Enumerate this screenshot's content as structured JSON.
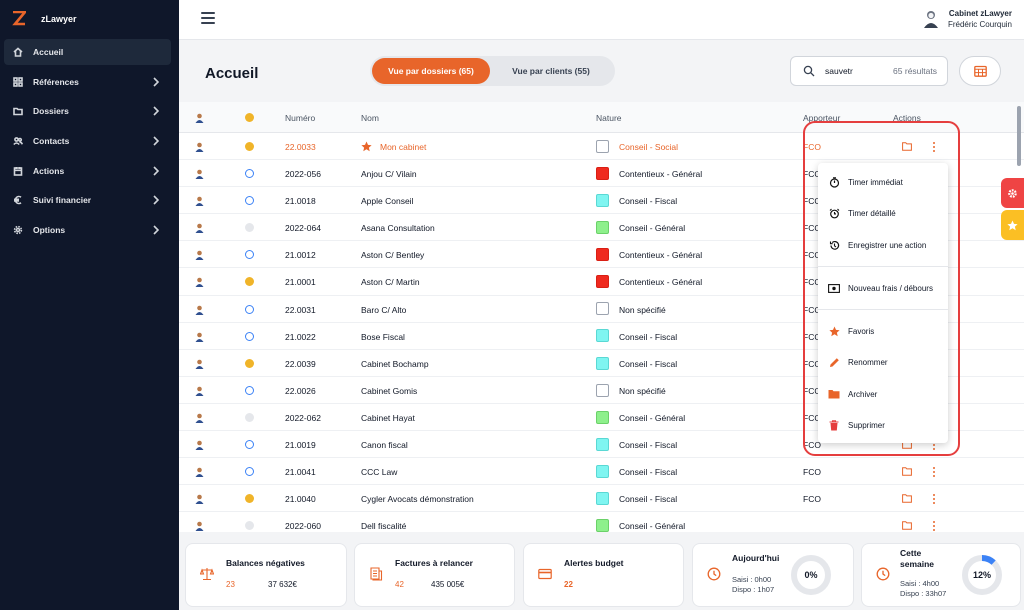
{
  "app": {
    "name": "zLawyer"
  },
  "sidebar": {
    "items": [
      {
        "label": "Accueil",
        "icon": "home-icon"
      },
      {
        "label": "Références",
        "icon": "grid-icon"
      },
      {
        "label": "Dossiers",
        "icon": "folder-icon"
      },
      {
        "label": "Contacts",
        "icon": "users-icon"
      },
      {
        "label": "Actions",
        "icon": "calendar-icon"
      },
      {
        "label": "Suivi financier",
        "icon": "euro-icon"
      },
      {
        "label": "Options",
        "icon": "gear-icon"
      }
    ]
  },
  "header": {
    "user_line1": "Cabinet zLawyer",
    "user_line2": "Frédéric Courquin"
  },
  "page": {
    "title": "Accueil"
  },
  "toggle": {
    "option1": "Vue par dossiers (65)",
    "option2": "Vue par clients (55)"
  },
  "search": {
    "value": "sauvetr",
    "count": "65 résultats"
  },
  "table": {
    "headers": {
      "numero": "Numéro",
      "nom": "Nom",
      "nature": "Nature",
      "apporteur": "Apporteur",
      "actions": "Actions"
    },
    "rows": [
      {
        "status": "gold",
        "numero": "22.0033",
        "nom": "Mon cabinet",
        "nature_color": "white",
        "nature": "Conseil - Social",
        "apporteur": "FCO",
        "favorite": true
      },
      {
        "status": "clock",
        "numero": "2022-056",
        "nom": "Anjou C/ Vilain",
        "nature_color": "red",
        "nature": "Contentieux - Général",
        "apporteur": "FCO"
      },
      {
        "status": "clock",
        "numero": "21.0018",
        "nom": "Apple Conseil",
        "nature_color": "cyan",
        "nature": "Conseil - Fiscal",
        "apporteur": "FCO"
      },
      {
        "status": "bulb",
        "numero": "2022-064",
        "nom": "Asana Consultation",
        "nature_color": "green",
        "nature": "Conseil - Général",
        "apporteur": "FCO"
      },
      {
        "status": "clock",
        "numero": "21.0012",
        "nom": "Aston C/ Bentley",
        "nature_color": "red",
        "nature": "Contentieux - Général",
        "apporteur": "FCO"
      },
      {
        "status": "gold",
        "numero": "21.0001",
        "nom": "Aston C/ Martin",
        "nature_color": "red",
        "nature": "Contentieux - Général",
        "apporteur": "FCO"
      },
      {
        "status": "clock",
        "numero": "22.0031",
        "nom": "Baro C/ Alto",
        "nature_color": "white",
        "nature": "Non spécifié",
        "apporteur": "FCO"
      },
      {
        "status": "clock",
        "numero": "21.0022",
        "nom": "Bose Fiscal",
        "nature_color": "cyan",
        "nature": "Conseil - Fiscal",
        "apporteur": "FCO"
      },
      {
        "status": "gold",
        "numero": "22.0039",
        "nom": "Cabinet Bochamp",
        "nature_color": "cyan",
        "nature": "Conseil - Fiscal",
        "apporteur": "FCO"
      },
      {
        "status": "clock",
        "numero": "22.0026",
        "nom": "Cabinet Gomis",
        "nature_color": "white",
        "nature": "Non spécifié",
        "apporteur": "FCO"
      },
      {
        "status": "bulb",
        "numero": "2022-062",
        "nom": "Cabinet Hayat",
        "nature_color": "green",
        "nature": "Conseil - Général",
        "apporteur": "FCO"
      },
      {
        "status": "clock",
        "numero": "21.0019",
        "nom": "Canon fiscal",
        "nature_color": "cyan",
        "nature": "Conseil - Fiscal",
        "apporteur": "FCO"
      },
      {
        "status": "clock",
        "numero": "21.0041",
        "nom": "CCC Law",
        "nature_color": "cyan",
        "nature": "Conseil - Fiscal",
        "apporteur": "FCO"
      },
      {
        "status": "gold",
        "numero": "21.0040",
        "nom": "Cygler Avocats démonstration",
        "nature_color": "cyan",
        "nature": "Conseil - Fiscal",
        "apporteur": "FCO"
      },
      {
        "status": "bulb",
        "numero": "2022-060",
        "nom": "Dell fiscalité",
        "nature_color": "green",
        "nature": "Conseil - Général",
        "apporteur": ""
      }
    ]
  },
  "menu": {
    "items": [
      {
        "label": "Timer immédiat",
        "icon": "stopwatch-icon"
      },
      {
        "label": "Timer détaillé",
        "icon": "alarm-icon"
      },
      {
        "label": "Enregistrer une action",
        "icon": "history-icon"
      },
      {
        "label": "Nouveau frais / débours",
        "icon": "money-icon"
      },
      {
        "label": "Favoris",
        "icon": "star-icon"
      },
      {
        "label": "Renommer",
        "icon": "pencil-icon"
      },
      {
        "label": "Archiver",
        "icon": "folder-icon"
      },
      {
        "label": "Supprimer",
        "icon": "trash-icon"
      }
    ]
  },
  "cards": {
    "balances": {
      "title": "Balances négatives",
      "count": "23",
      "amount": "37 632€"
    },
    "factures": {
      "title": "Factures à relancer",
      "count": "42",
      "amount": "435 005€"
    },
    "alertes": {
      "title": "Alertes budget",
      "count": "22"
    },
    "aujourdhui": {
      "title": "Aujourd'hui",
      "saisi": "Saisi : 0h00",
      "dispo": "Dispo : 1h07",
      "percent_label": "0%",
      "percent": 0
    },
    "semaine": {
      "title_line1": "Cette",
      "title_line2": "semaine",
      "saisi": "Saisi : 4h00",
      "dispo": "Dispo : 33h07",
      "percent_label": "12%",
      "percent": 12
    }
  },
  "colors": {
    "accent": "#e8652a",
    "sidebar": "#0f172a",
    "highlight": "#e53e3e"
  }
}
